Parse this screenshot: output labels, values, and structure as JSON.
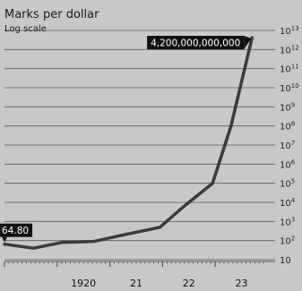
{
  "colors": {
    "background": "#c8c8c8",
    "line": "#3a3a3a",
    "gridline": "#5a5a5a",
    "callout_background": "#111111",
    "callout_text": "#ffffff"
  },
  "chart_data": {
    "type": "line",
    "title": "Marks per dollar",
    "subtitle": "Log scale",
    "xlabel": "",
    "ylabel": "",
    "y_scale": "log",
    "ylim": [
      10,
      10000000000000
    ],
    "y_ticks": [
      {
        "base": "10",
        "exp": ""
      },
      {
        "base": "10",
        "exp": "2"
      },
      {
        "base": "10",
        "exp": "3"
      },
      {
        "base": "10",
        "exp": "4"
      },
      {
        "base": "10",
        "exp": "5"
      },
      {
        "base": "10",
        "exp": "6"
      },
      {
        "base": "10",
        "exp": "7"
      },
      {
        "base": "10",
        "exp": "8"
      },
      {
        "base": "10",
        "exp": "9"
      },
      {
        "base": "10",
        "exp": "10"
      },
      {
        "base": "10",
        "exp": "11"
      },
      {
        "base": "10",
        "exp": "12"
      },
      {
        "base": "10",
        "exp": "13"
      }
    ],
    "x_ticks": [
      "1920",
      "21",
      "22",
      "23"
    ],
    "x_tick_years": [
      1920,
      1921,
      1922,
      1923
    ],
    "xlim": [
      1919,
      1923.95
    ],
    "grid": true,
    "legend": "none",
    "series": [
      {
        "x": [
          1919.0,
          1919.55,
          1920.1,
          1920.7,
          1921.3,
          1921.95,
          1922.4,
          1922.95,
          1923.3,
          1923.7
        ],
        "y": [
          64.8,
          40,
          80,
          90,
          210,
          490,
          6000,
          100000,
          100000000,
          4200000000000
        ]
      }
    ],
    "annotations": [
      {
        "text": "64.80",
        "x": 1919.0,
        "y": 64.8
      },
      {
        "text": "4,200,000,000,000",
        "x": 1923.7,
        "y": 4200000000000
      }
    ]
  }
}
